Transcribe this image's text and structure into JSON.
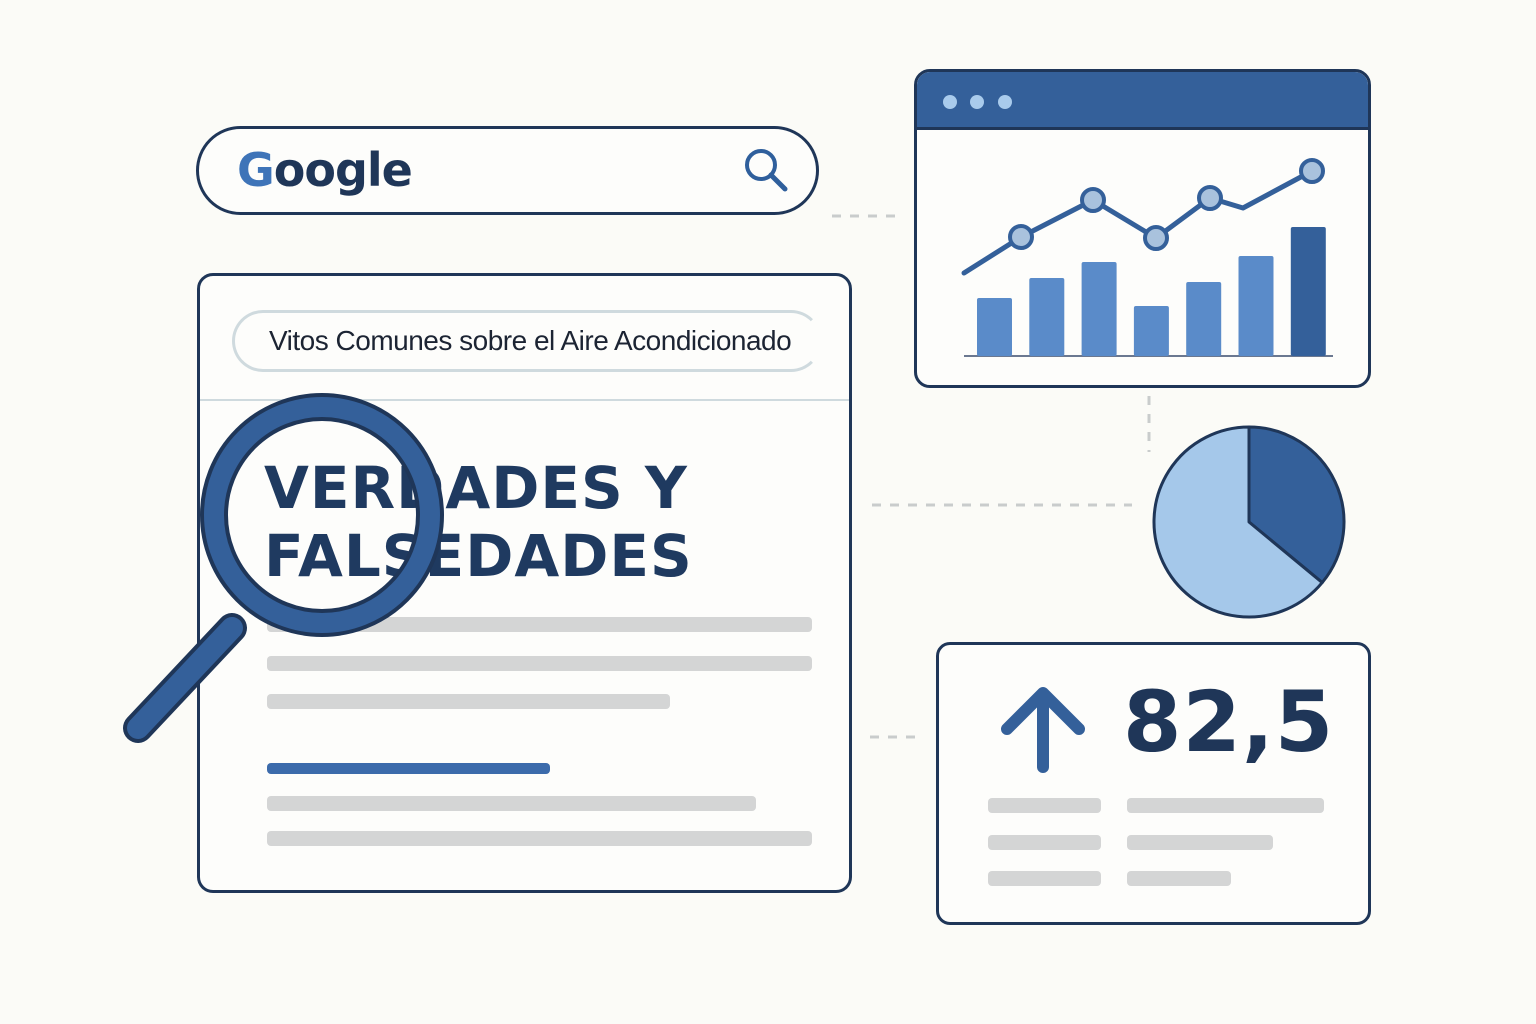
{
  "search": {
    "logo": "Google",
    "icon": "search-icon"
  },
  "result_card": {
    "query": "Vitos Comunes sobre el Aire Acondicionado",
    "headline_line1": "VERDADES Y",
    "headline_line2": "FALSEDADES",
    "magnifier_icon": "magnifying-glass-icon"
  },
  "chart_data": [
    {
      "type": "bar",
      "values": [
        58,
        78,
        94,
        50,
        74,
        100,
        129
      ],
      "line_values": [
        83,
        119,
        156,
        118,
        158,
        148,
        185
      ],
      "line_markers": [
        false,
        true,
        true,
        true,
        true,
        false,
        true
      ],
      "grid": false,
      "colors": {
        "bar": "#5a8bc9",
        "bar_highlight": "#34609a",
        "line": "#34609a",
        "marker": "#a9c2dd"
      }
    },
    {
      "type": "pie",
      "values": [
        36,
        64
      ],
      "colors": [
        "#34609a",
        "#a5c8ea"
      ]
    }
  ],
  "stat": {
    "value": "82,5",
    "trend_icon": "arrow-up-icon"
  },
  "colors": {
    "navy": "#1f3658",
    "accent": "#34609a",
    "placeholder": "#d4d5d5",
    "background": "#fbfbf7"
  }
}
